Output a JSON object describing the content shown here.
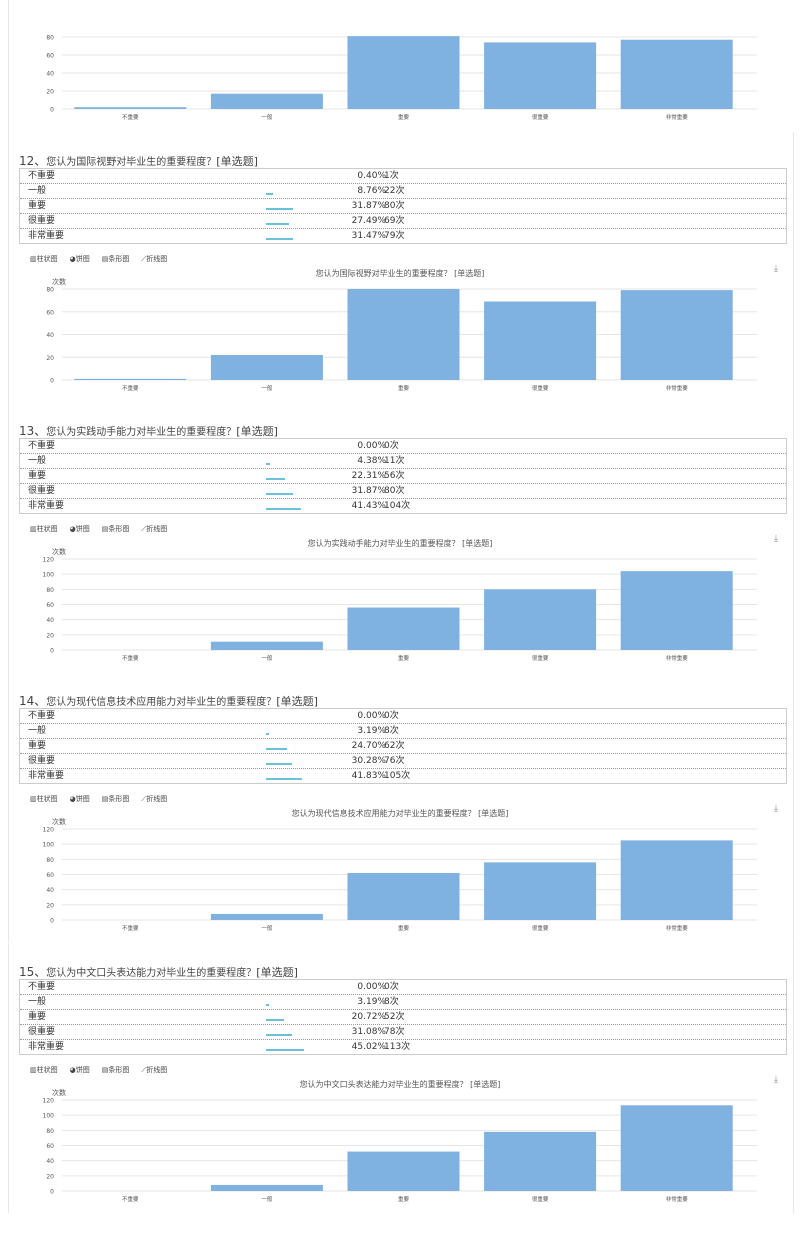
{
  "toolbar": {
    "bar": "柱状图",
    "pie": "饼图",
    "hbar": "条形图",
    "line": "折线图"
  },
  "download_icon": "download-icon",
  "colors": {
    "bar": "#7fb2e0",
    "table_bar": "#6cc0dc",
    "grid": "#e6e6e6"
  },
  "top_chart": {
    "chart_data": {
      "type": "bar",
      "categories": [
        "不重要",
        "一般",
        "重要",
        "很重要",
        "非常重要"
      ],
      "values": [
        2,
        17,
        81,
        74,
        77
      ],
      "ylim": [
        0,
        100
      ],
      "yticks": [
        0,
        20,
        40,
        60,
        80
      ]
    }
  },
  "questions": [
    {
      "num": "12、",
      "text": "您认为国际视野对毕业生的重要程度？",
      "type": "[单选题]",
      "options": [
        {
          "label": "不重要",
          "pct": "0.40%",
          "count": "1次"
        },
        {
          "label": "一般",
          "pct": "8.76%",
          "count": "22次"
        },
        {
          "label": "重要",
          "pct": "31.87%",
          "count": "80次"
        },
        {
          "label": "很重要",
          "pct": "27.49%",
          "count": "69次"
        },
        {
          "label": "非常重要",
          "pct": "31.47%",
          "count": "79次"
        }
      ],
      "chart_data": {
        "type": "bar",
        "title": "您认为国际视野对毕业生的重要程度？ [单选题]",
        "ylabel": "次数",
        "categories": [
          "不重要",
          "一般",
          "重要",
          "很重要",
          "非常重要"
        ],
        "values": [
          1,
          22,
          80,
          69,
          79
        ],
        "ylim": [
          0,
          80
        ],
        "yticks": [
          0,
          20,
          40,
          60,
          80
        ]
      }
    },
    {
      "num": "13、",
      "text": "您认为实践动手能力对毕业生的重要程度？",
      "type": "[单选题]",
      "options": [
        {
          "label": "不重要",
          "pct": "0.00%",
          "count": "0次"
        },
        {
          "label": "一般",
          "pct": "4.38%",
          "count": "11次"
        },
        {
          "label": "重要",
          "pct": "22.31%",
          "count": "56次"
        },
        {
          "label": "很重要",
          "pct": "31.87%",
          "count": "80次"
        },
        {
          "label": "非常重要",
          "pct": "41.43%",
          "count": "104次"
        }
      ],
      "chart_data": {
        "type": "bar",
        "title": "您认为实践动手能力对毕业生的重要程度？ [单选题]",
        "ylabel": "次数",
        "categories": [
          "不重要",
          "一般",
          "重要",
          "很重要",
          "非常重要"
        ],
        "values": [
          0,
          11,
          56,
          80,
          104
        ],
        "ylim": [
          0,
          120
        ],
        "yticks": [
          0,
          20,
          40,
          60,
          80,
          100,
          120
        ]
      }
    },
    {
      "num": "14、",
      "text": "您认为现代信息技术应用能力对毕业生的重要程度？",
      "type": "[单选题]",
      "options": [
        {
          "label": "不重要",
          "pct": "0.00%",
          "count": "0次"
        },
        {
          "label": "一般",
          "pct": "3.19%",
          "count": "8次"
        },
        {
          "label": "重要",
          "pct": "24.70%",
          "count": "62次"
        },
        {
          "label": "很重要",
          "pct": "30.28%",
          "count": "76次"
        },
        {
          "label": "非常重要",
          "pct": "41.83%",
          "count": "105次"
        }
      ],
      "chart_data": {
        "type": "bar",
        "title": "您认为现代信息技术应用能力对毕业生的重要程度？ [单选题]",
        "ylabel": "次数",
        "categories": [
          "不重要",
          "一般",
          "重要",
          "很重要",
          "非常重要"
        ],
        "values": [
          0,
          8,
          62,
          76,
          105
        ],
        "ylim": [
          0,
          120
        ],
        "yticks": [
          0,
          20,
          40,
          60,
          80,
          100,
          120
        ]
      }
    },
    {
      "num": "15、",
      "text": "您认为中文口头表达能力对毕业生的重要程度？",
      "type": "[单选题]",
      "options": [
        {
          "label": "不重要",
          "pct": "0.00%",
          "count": "0次"
        },
        {
          "label": "一般",
          "pct": "3.19%",
          "count": "8次"
        },
        {
          "label": "重要",
          "pct": "20.72%",
          "count": "52次"
        },
        {
          "label": "很重要",
          "pct": "31.08%",
          "count": "78次"
        },
        {
          "label": "非常重要",
          "pct": "45.02%",
          "count": "113次"
        }
      ],
      "chart_data": {
        "type": "bar",
        "title": "您认为中文口头表达能力对毕业生的重要程度？ [单选题]",
        "ylabel": "次数",
        "categories": [
          "不重要",
          "一般",
          "重要",
          "很重要",
          "非常重要"
        ],
        "values": [
          0,
          8,
          52,
          78,
          113
        ],
        "ylim": [
          0,
          120
        ],
        "yticks": [
          0,
          20,
          40,
          60,
          80,
          100,
          120
        ]
      }
    }
  ]
}
